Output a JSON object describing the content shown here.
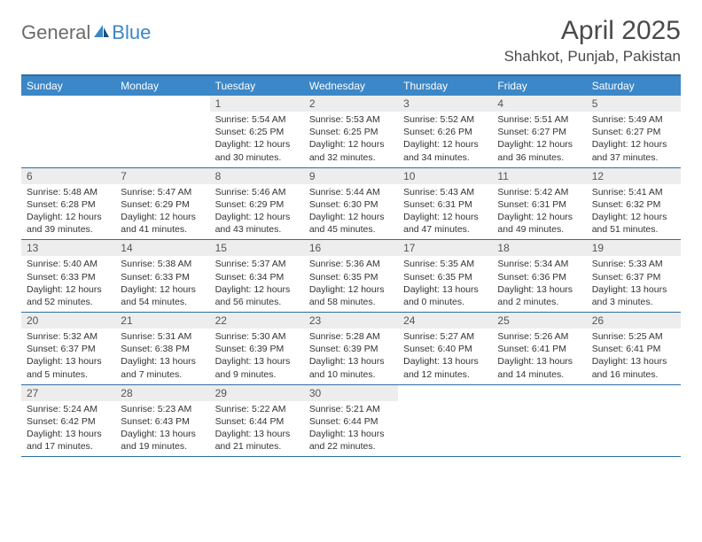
{
  "logo": {
    "general": "General",
    "blue": "Blue"
  },
  "title": "April 2025",
  "location": "Shahkot, Punjab, Pakistan",
  "colors": {
    "header_bg": "#3b87c8",
    "header_border": "#2d6da3",
    "daynum_bg": "#ededed",
    "text": "#333333",
    "title_text": "#4a4a4a",
    "logo_gray": "#6b6b6b",
    "logo_blue": "#3b87c8"
  },
  "day_names": [
    "Sunday",
    "Monday",
    "Tuesday",
    "Wednesday",
    "Thursday",
    "Friday",
    "Saturday"
  ],
  "weeks": [
    [
      {
        "empty": true
      },
      {
        "empty": true
      },
      {
        "day": "1",
        "sunrise": "Sunrise: 5:54 AM",
        "sunset": "Sunset: 6:25 PM",
        "daylight": "Daylight: 12 hours and 30 minutes."
      },
      {
        "day": "2",
        "sunrise": "Sunrise: 5:53 AM",
        "sunset": "Sunset: 6:25 PM",
        "daylight": "Daylight: 12 hours and 32 minutes."
      },
      {
        "day": "3",
        "sunrise": "Sunrise: 5:52 AM",
        "sunset": "Sunset: 6:26 PM",
        "daylight": "Daylight: 12 hours and 34 minutes."
      },
      {
        "day": "4",
        "sunrise": "Sunrise: 5:51 AM",
        "sunset": "Sunset: 6:27 PM",
        "daylight": "Daylight: 12 hours and 36 minutes."
      },
      {
        "day": "5",
        "sunrise": "Sunrise: 5:49 AM",
        "sunset": "Sunset: 6:27 PM",
        "daylight": "Daylight: 12 hours and 37 minutes."
      }
    ],
    [
      {
        "day": "6",
        "sunrise": "Sunrise: 5:48 AM",
        "sunset": "Sunset: 6:28 PM",
        "daylight": "Daylight: 12 hours and 39 minutes."
      },
      {
        "day": "7",
        "sunrise": "Sunrise: 5:47 AM",
        "sunset": "Sunset: 6:29 PM",
        "daylight": "Daylight: 12 hours and 41 minutes."
      },
      {
        "day": "8",
        "sunrise": "Sunrise: 5:46 AM",
        "sunset": "Sunset: 6:29 PM",
        "daylight": "Daylight: 12 hours and 43 minutes."
      },
      {
        "day": "9",
        "sunrise": "Sunrise: 5:44 AM",
        "sunset": "Sunset: 6:30 PM",
        "daylight": "Daylight: 12 hours and 45 minutes."
      },
      {
        "day": "10",
        "sunrise": "Sunrise: 5:43 AM",
        "sunset": "Sunset: 6:31 PM",
        "daylight": "Daylight: 12 hours and 47 minutes."
      },
      {
        "day": "11",
        "sunrise": "Sunrise: 5:42 AM",
        "sunset": "Sunset: 6:31 PM",
        "daylight": "Daylight: 12 hours and 49 minutes."
      },
      {
        "day": "12",
        "sunrise": "Sunrise: 5:41 AM",
        "sunset": "Sunset: 6:32 PM",
        "daylight": "Daylight: 12 hours and 51 minutes."
      }
    ],
    [
      {
        "day": "13",
        "sunrise": "Sunrise: 5:40 AM",
        "sunset": "Sunset: 6:33 PM",
        "daylight": "Daylight: 12 hours and 52 minutes."
      },
      {
        "day": "14",
        "sunrise": "Sunrise: 5:38 AM",
        "sunset": "Sunset: 6:33 PM",
        "daylight": "Daylight: 12 hours and 54 minutes."
      },
      {
        "day": "15",
        "sunrise": "Sunrise: 5:37 AM",
        "sunset": "Sunset: 6:34 PM",
        "daylight": "Daylight: 12 hours and 56 minutes."
      },
      {
        "day": "16",
        "sunrise": "Sunrise: 5:36 AM",
        "sunset": "Sunset: 6:35 PM",
        "daylight": "Daylight: 12 hours and 58 minutes."
      },
      {
        "day": "17",
        "sunrise": "Sunrise: 5:35 AM",
        "sunset": "Sunset: 6:35 PM",
        "daylight": "Daylight: 13 hours and 0 minutes."
      },
      {
        "day": "18",
        "sunrise": "Sunrise: 5:34 AM",
        "sunset": "Sunset: 6:36 PM",
        "daylight": "Daylight: 13 hours and 2 minutes."
      },
      {
        "day": "19",
        "sunrise": "Sunrise: 5:33 AM",
        "sunset": "Sunset: 6:37 PM",
        "daylight": "Daylight: 13 hours and 3 minutes."
      }
    ],
    [
      {
        "day": "20",
        "sunrise": "Sunrise: 5:32 AM",
        "sunset": "Sunset: 6:37 PM",
        "daylight": "Daylight: 13 hours and 5 minutes."
      },
      {
        "day": "21",
        "sunrise": "Sunrise: 5:31 AM",
        "sunset": "Sunset: 6:38 PM",
        "daylight": "Daylight: 13 hours and 7 minutes."
      },
      {
        "day": "22",
        "sunrise": "Sunrise: 5:30 AM",
        "sunset": "Sunset: 6:39 PM",
        "daylight": "Daylight: 13 hours and 9 minutes."
      },
      {
        "day": "23",
        "sunrise": "Sunrise: 5:28 AM",
        "sunset": "Sunset: 6:39 PM",
        "daylight": "Daylight: 13 hours and 10 minutes."
      },
      {
        "day": "24",
        "sunrise": "Sunrise: 5:27 AM",
        "sunset": "Sunset: 6:40 PM",
        "daylight": "Daylight: 13 hours and 12 minutes."
      },
      {
        "day": "25",
        "sunrise": "Sunrise: 5:26 AM",
        "sunset": "Sunset: 6:41 PM",
        "daylight": "Daylight: 13 hours and 14 minutes."
      },
      {
        "day": "26",
        "sunrise": "Sunrise: 5:25 AM",
        "sunset": "Sunset: 6:41 PM",
        "daylight": "Daylight: 13 hours and 16 minutes."
      }
    ],
    [
      {
        "day": "27",
        "sunrise": "Sunrise: 5:24 AM",
        "sunset": "Sunset: 6:42 PM",
        "daylight": "Daylight: 13 hours and 17 minutes."
      },
      {
        "day": "28",
        "sunrise": "Sunrise: 5:23 AM",
        "sunset": "Sunset: 6:43 PM",
        "daylight": "Daylight: 13 hours and 19 minutes."
      },
      {
        "day": "29",
        "sunrise": "Sunrise: 5:22 AM",
        "sunset": "Sunset: 6:44 PM",
        "daylight": "Daylight: 13 hours and 21 minutes."
      },
      {
        "day": "30",
        "sunrise": "Sunrise: 5:21 AM",
        "sunset": "Sunset: 6:44 PM",
        "daylight": "Daylight: 13 hours and 22 minutes."
      },
      {
        "empty": true
      },
      {
        "empty": true
      },
      {
        "empty": true
      }
    ]
  ]
}
